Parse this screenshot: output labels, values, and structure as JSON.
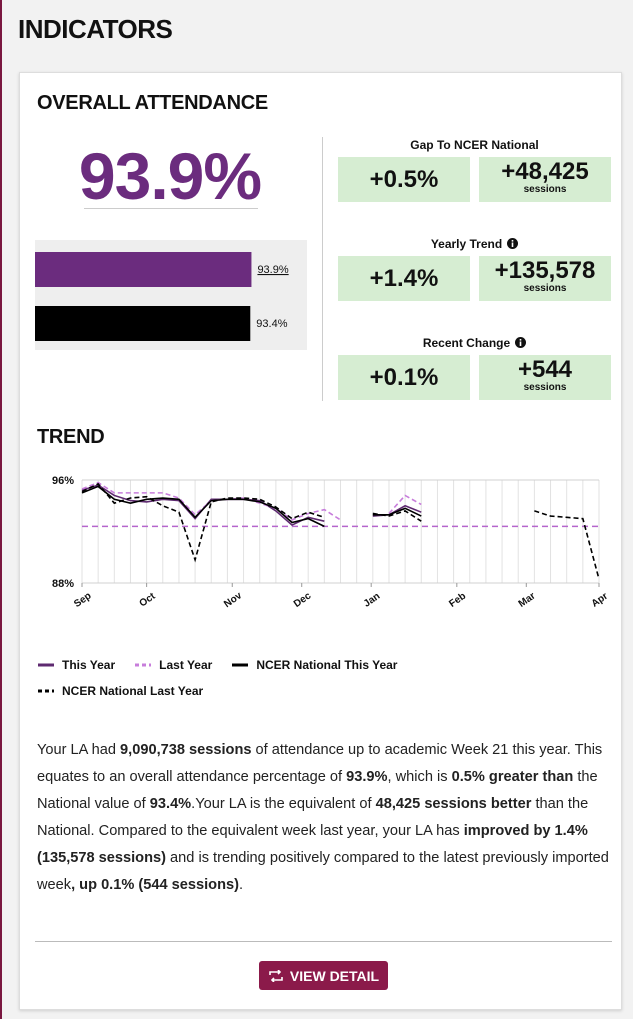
{
  "header": {
    "title": "INDICATORS"
  },
  "attendance": {
    "title": "OVERALL ATTENDANCE",
    "headline": "93.9%",
    "chart_data": {
      "type": "bar",
      "orientation": "horizontal",
      "values": [
        93.9,
        93.4
      ],
      "value_labels": [
        "93.9%",
        "93.4%"
      ],
      "colors": [
        "#6b2c7e",
        "#000000"
      ],
      "xlim": [
        0,
        118
      ]
    }
  },
  "comparisons": [
    {
      "title": "Gap To NCER National",
      "percent": "+0.5%",
      "sessions": "+48,425",
      "unit": "sessions",
      "info": false
    },
    {
      "title": "Yearly Trend",
      "percent": "+1.4%",
      "sessions": "+135,578",
      "unit": "sessions",
      "info": true
    },
    {
      "title": "Recent Change",
      "percent": "+0.1%",
      "sessions": "+544",
      "unit": "sessions",
      "info": true
    }
  ],
  "trend": {
    "title": "TREND",
    "chart_data": {
      "type": "line",
      "x": [
        0,
        1,
        2,
        3,
        4,
        5,
        6,
        7,
        8,
        9,
        10,
        11,
        12,
        13,
        14,
        15,
        16,
        17,
        18,
        19,
        20,
        21,
        22,
        23,
        24,
        25,
        26,
        27,
        28,
        29,
        30,
        31,
        32
      ],
      "xlim": [
        0,
        32
      ],
      "xticks": [
        {
          "value": 0,
          "label": "Sep"
        },
        {
          "value": 4,
          "label": "Oct"
        },
        {
          "value": 9.3,
          "label": "Nov"
        },
        {
          "value": 13.6,
          "label": "Dec"
        },
        {
          "value": 17.9,
          "label": "Jan"
        },
        {
          "value": 23.2,
          "label": "Feb"
        },
        {
          "value": 27.5,
          "label": "Mar"
        },
        {
          "value": 32,
          "label": "Apr"
        }
      ],
      "ylim": [
        88,
        96
      ],
      "yticks": [
        {
          "value": 96,
          "label": "96%"
        },
        {
          "value": 88,
          "label": "88%"
        }
      ],
      "grid": true,
      "reference_line": {
        "value": 92.4,
        "color": "#b565cc"
      },
      "series": [
        {
          "name": "This Year",
          "color": "#5e2a70",
          "dash": false,
          "values": [
            95.2,
            95.6,
            94.8,
            94.4,
            94.3,
            94.5,
            94.4,
            93.0,
            94.5,
            94.5,
            94.5,
            94.4,
            93.6,
            92.5,
            93.1,
            92.8,
            null,
            null,
            93.2,
            93.3,
            94.0,
            93.5,
            null,
            null,
            null,
            null,
            null,
            null,
            null,
            null,
            null,
            null,
            null
          ]
        },
        {
          "name": "Last Year",
          "color": "#c77ddb",
          "dash": true,
          "values": [
            95.3,
            95.8,
            95.0,
            95.0,
            95.0,
            95.0,
            94.6,
            93.3,
            94.4,
            94.5,
            94.6,
            94.2,
            93.8,
            92.9,
            93.4,
            93.7,
            92.9,
            null,
            null,
            93.4,
            94.8,
            94.1,
            null,
            null,
            null,
            null,
            null,
            null,
            null,
            null,
            null,
            null,
            null
          ]
        },
        {
          "name": "NCER National This Year",
          "color": "#000000",
          "dash": false,
          "values": [
            95.0,
            95.5,
            94.5,
            94.2,
            94.5,
            94.6,
            94.5,
            93.1,
            94.4,
            94.5,
            94.5,
            94.3,
            93.8,
            92.7,
            93.0,
            92.4,
            null,
            null,
            93.3,
            93.3,
            93.8,
            93.2,
            null,
            null,
            null,
            null,
            null,
            null,
            null,
            null,
            null,
            null,
            null
          ]
        },
        {
          "name": "NCER National Last Year",
          "color": "#000000",
          "dash": true,
          "values": [
            95.1,
            95.7,
            94.2,
            94.6,
            94.7,
            94.0,
            93.5,
            89.8,
            94.3,
            94.6,
            94.6,
            94.5,
            93.9,
            93.0,
            93.5,
            93.1,
            null,
            null,
            93.4,
            93.2,
            93.6,
            92.8,
            null,
            null,
            null,
            null,
            null,
            null,
            93.6,
            93.2,
            93.1,
            93.0,
            88.3
          ]
        }
      ]
    }
  },
  "summary": {
    "paragraph": [
      {
        "text": "Your LA had ",
        "bold": false
      },
      {
        "text": "9,090,738 sessions",
        "bold": true
      },
      {
        "text": " of attendance up to academic Week 21 this year. This equates to an overall attendance percentage of ",
        "bold": false
      },
      {
        "text": "93.9%",
        "bold": true
      },
      {
        "text": ", which is ",
        "bold": false
      },
      {
        "text": "0.5% greater than",
        "bold": true
      },
      {
        "text": " the National value of ",
        "bold": false
      },
      {
        "text": "93.4%",
        "bold": true
      },
      {
        "text": ".Your LA is the equivalent of ",
        "bold": false
      },
      {
        "text": "48,425 sessions better",
        "bold": true
      },
      {
        "text": " than the National. Compared to the equivalent week last year, your LA has ",
        "bold": false
      },
      {
        "text": "improved by 1.4% (135,578 sessions)",
        "bold": true
      },
      {
        "text": " and is trending positively compared to the latest previously imported week",
        "bold": false
      },
      {
        "text": ", up 0.1% (544 sessions)",
        "bold": true
      },
      {
        "text": ".",
        "bold": false
      }
    ]
  },
  "button": {
    "label": "VIEW DETAIL"
  }
}
